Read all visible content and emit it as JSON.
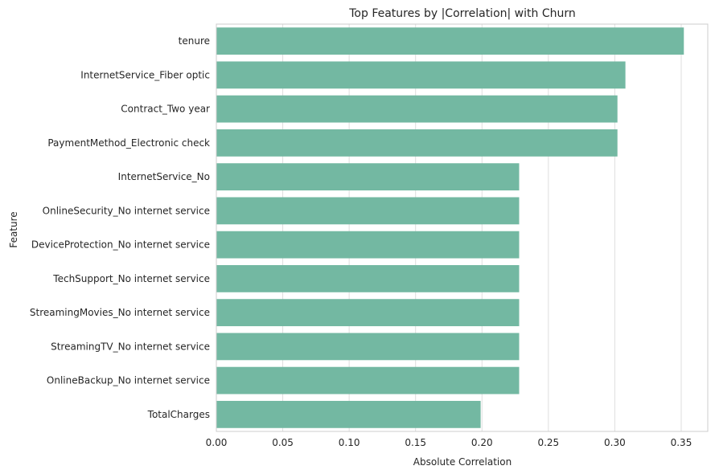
{
  "chart_data": {
    "type": "bar",
    "orientation": "horizontal",
    "title": "Top Features by |Correlation| with Churn",
    "xlabel": "Absolute Correlation",
    "ylabel": "Feature",
    "categories": [
      "tenure",
      "InternetService_Fiber optic",
      "Contract_Two year",
      "PaymentMethod_Electronic check",
      "InternetService_No",
      "OnlineSecurity_No internet service",
      "DeviceProtection_No internet service",
      "TechSupport_No internet service",
      "StreamingMovies_No internet service",
      "StreamingTV_No internet service",
      "OnlineBackup_No internet service",
      "TotalCharges"
    ],
    "values": [
      0.352,
      0.308,
      0.302,
      0.302,
      0.228,
      0.228,
      0.228,
      0.228,
      0.228,
      0.228,
      0.228,
      0.199
    ],
    "xlim": [
      0,
      0.37
    ],
    "xticks": [
      "0.00",
      "0.05",
      "0.10",
      "0.15",
      "0.20",
      "0.25",
      "0.30",
      "0.35"
    ],
    "grid": "vertical",
    "bar_color": "#73b8a2",
    "grid_color": "#dedede",
    "spine_color": "#cccccc",
    "text_color": "#262626"
  }
}
